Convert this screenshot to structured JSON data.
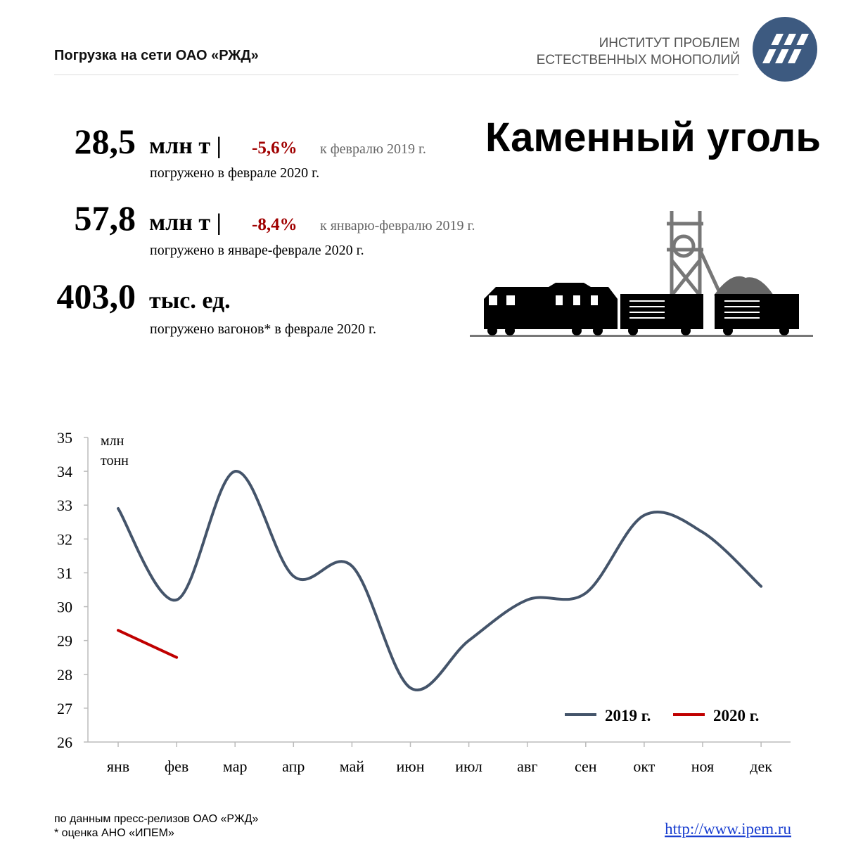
{
  "header": {
    "title": "Погрузка на сети ОАО «РЖД»",
    "logo_lines": [
      "ИНСТИТУТ ПРОБЛЕМ",
      "ЕСТЕСТВЕННЫХ МОНОПОЛИЙ"
    ]
  },
  "heading": "Каменный уголь",
  "stats": [
    {
      "value": "28,5",
      "unit": "млн т |",
      "change": "-5,6%",
      "comparison": "к февралю 2019 г.",
      "note": "погружено в феврале 2020 г."
    },
    {
      "value": "57,8",
      "unit": "млн т |",
      "change": "-8,4%",
      "comparison": "к январю-февралю 2019 г.",
      "note": "погружено в январе-феврале 2020 г."
    },
    {
      "value": "403,0",
      "unit": "тыс. ед.",
      "note": "погружено вагонов* в феврале 2020 г."
    }
  ],
  "chart_data": {
    "type": "line",
    "ylabel": [
      "млн",
      "тонн"
    ],
    "categories": [
      "янв",
      "фев",
      "мар",
      "апр",
      "май",
      "июн",
      "июл",
      "авг",
      "сен",
      "окт",
      "ноя",
      "дек"
    ],
    "series": [
      {
        "name": "2019 г.",
        "color": "#44546a",
        "values": [
          32.9,
          30.2,
          34.0,
          30.9,
          31.2,
          27.6,
          29.0,
          30.2,
          30.4,
          32.7,
          32.2,
          30.6
        ]
      },
      {
        "name": "2020 г.",
        "color": "#c00000",
        "values": [
          29.3,
          28.5,
          null,
          null,
          null,
          null,
          null,
          null,
          null,
          null,
          null,
          null
        ]
      }
    ],
    "ylim": [
      26,
      35
    ],
    "yticks": [
      26,
      27,
      28,
      29,
      30,
      31,
      32,
      33,
      34,
      35
    ],
    "smooth": true,
    "legend": "bottom-right"
  },
  "footer": {
    "source_lines": [
      "по данным  пресс-релизов ОАО «РЖД»",
      "* оценка АНО «ИПЕМ»"
    ],
    "url": "http://www.ipem.ru"
  }
}
